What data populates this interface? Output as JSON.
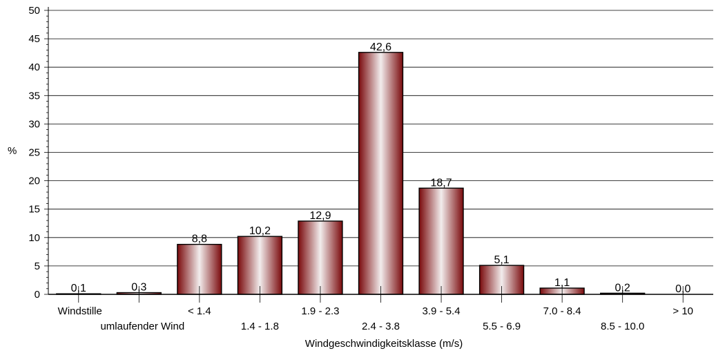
{
  "chart_data": {
    "type": "bar",
    "title": "",
    "xlabel": "Windgeschwindigkeitsklasse (m/s)",
    "ylabel": "%",
    "ylim": [
      0,
      50
    ],
    "yticks": [
      "0",
      "5",
      "10",
      "15",
      "20",
      "25",
      "30",
      "35",
      "40",
      "45",
      "50"
    ],
    "grid": true,
    "categories": [
      "Windstille",
      "umlaufender Wind",
      "< 1.4",
      "1.4 - 1.8",
      "1.9 - 2.3",
      "2.4 - 3.8",
      "3.9 - 5.4",
      "5.5 - 6.9",
      "7.0 - 8.4",
      "8.5 - 10.0",
      "> 10"
    ],
    "values": [
      0.1,
      0.3,
      8.8,
      10.2,
      12.9,
      42.6,
      18.7,
      5.1,
      1.1,
      0.2,
      0.0
    ],
    "value_labels": [
      "0,1",
      "0,3",
      "8,8",
      "10,2",
      "12,9",
      "42,6",
      "18,7",
      "5,1",
      "1,1",
      "0,2",
      "0,0"
    ],
    "colors": {
      "bar_dark": "#7a0a0c",
      "bar_light": "#f2eded",
      "grid": "#000000"
    }
  }
}
